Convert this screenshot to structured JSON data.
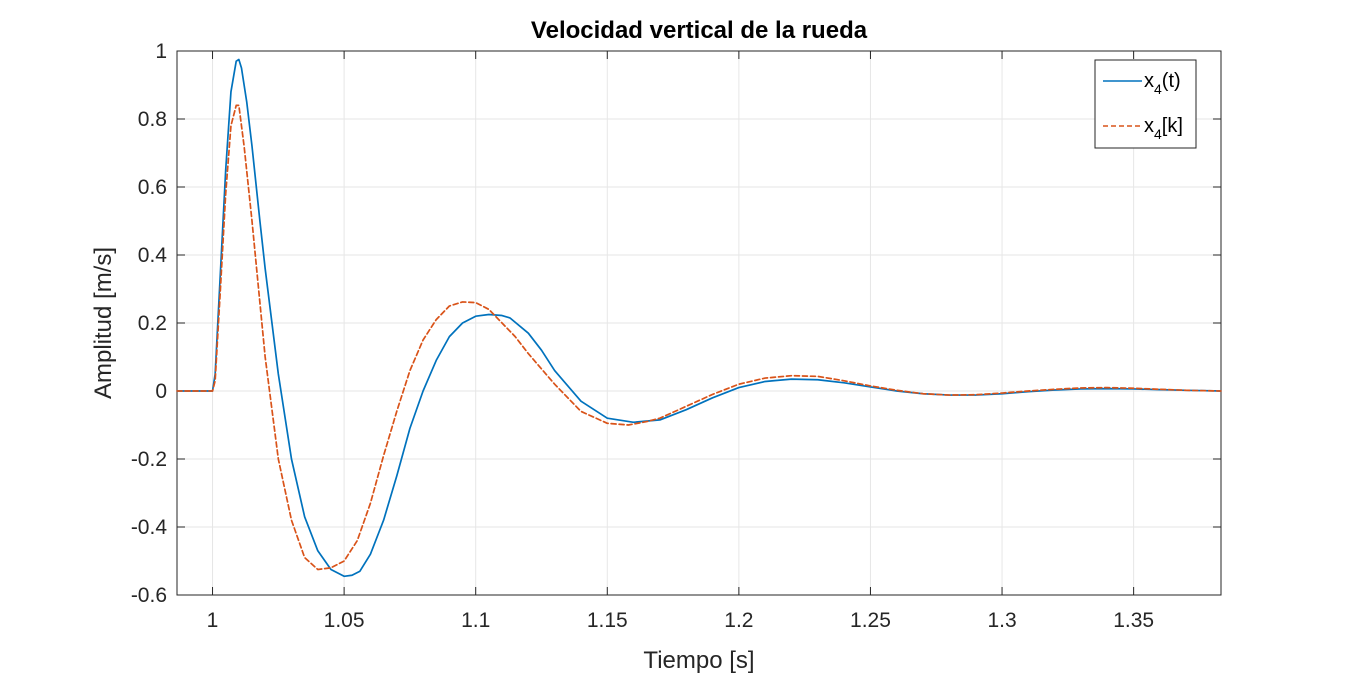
{
  "chart_data": {
    "type": "line",
    "title": "Velocidad vertical de la rueda",
    "xlabel": "Tiempo [s]",
    "ylabel": "Amplitud [m/s]",
    "xlim": [
      0.9865,
      1.3832
    ],
    "ylim": [
      -0.6,
      1
    ],
    "xticks": [
      1,
      1.05,
      1.1,
      1.15,
      1.2,
      1.25,
      1.3,
      1.35
    ],
    "xtick_labels": [
      "1",
      "1.05",
      "1.1",
      "1.15",
      "1.2",
      "1.25",
      "1.3",
      "1.35"
    ],
    "yticks": [
      -0.6,
      -0.4,
      -0.2,
      0,
      0.2,
      0.4,
      0.6,
      0.8,
      1
    ],
    "ytick_labels": [
      "-0.6",
      "-0.4",
      "-0.2",
      "0",
      "0.2",
      "0.4",
      "0.6",
      "0.8",
      "1"
    ],
    "grid": true,
    "legend_position": "top-right",
    "legend": {
      "items": [
        {
          "base": "x",
          "sub": "4",
          "suffix": "(t)"
        },
        {
          "base": "x",
          "sub": "4",
          "suffix": "[k]"
        }
      ]
    },
    "series": [
      {
        "name": "x4(t)",
        "color": "#0072BD",
        "style": "solid",
        "x": [
          0.9865,
          1.0,
          1.001,
          1.003,
          1.005,
          1.007,
          1.009,
          1.01,
          1.011,
          1.013,
          1.015,
          1.018,
          1.02,
          1.025,
          1.03,
          1.035,
          1.04,
          1.045,
          1.05,
          1.053,
          1.056,
          1.06,
          1.065,
          1.07,
          1.075,
          1.08,
          1.085,
          1.09,
          1.095,
          1.1,
          1.105,
          1.11,
          1.113,
          1.12,
          1.125,
          1.13,
          1.14,
          1.15,
          1.16,
          1.17,
          1.18,
          1.19,
          1.2,
          1.21,
          1.22,
          1.23,
          1.24,
          1.25,
          1.26,
          1.27,
          1.28,
          1.29,
          1.3,
          1.31,
          1.32,
          1.33,
          1.34,
          1.35,
          1.36,
          1.37,
          1.3832
        ],
        "y": [
          0,
          0,
          0.05,
          0.35,
          0.65,
          0.88,
          0.97,
          0.975,
          0.95,
          0.85,
          0.72,
          0.5,
          0.36,
          0.05,
          -0.2,
          -0.37,
          -0.47,
          -0.525,
          -0.545,
          -0.542,
          -0.53,
          -0.48,
          -0.38,
          -0.25,
          -0.11,
          0.0,
          0.09,
          0.16,
          0.2,
          0.22,
          0.225,
          0.222,
          0.215,
          0.17,
          0.12,
          0.06,
          -0.03,
          -0.08,
          -0.092,
          -0.085,
          -0.055,
          -0.02,
          0.01,
          0.028,
          0.035,
          0.033,
          0.024,
          0.012,
          0.0,
          -0.008,
          -0.012,
          -0.012,
          -0.008,
          -0.002,
          0.003,
          0.006,
          0.007,
          0.006,
          0.004,
          0.002,
          0.0
        ]
      },
      {
        "name": "x4[k]",
        "color": "#D95319",
        "style": "dashed",
        "x": [
          0.9865,
          1.0,
          1.001,
          1.003,
          1.005,
          1.007,
          1.009,
          1.01,
          1.012,
          1.015,
          1.02,
          1.025,
          1.03,
          1.035,
          1.04,
          1.045,
          1.05,
          1.055,
          1.06,
          1.065,
          1.07,
          1.075,
          1.08,
          1.085,
          1.09,
          1.095,
          1.1,
          1.105,
          1.11,
          1.115,
          1.12,
          1.13,
          1.14,
          1.15,
          1.158,
          1.165,
          1.17,
          1.18,
          1.19,
          1.2,
          1.21,
          1.22,
          1.23,
          1.24,
          1.25,
          1.26,
          1.27,
          1.28,
          1.29,
          1.3,
          1.31,
          1.32,
          1.33,
          1.34,
          1.35,
          1.36,
          1.37,
          1.3832
        ],
        "y": [
          0,
          0,
          0.03,
          0.3,
          0.58,
          0.78,
          0.84,
          0.84,
          0.72,
          0.5,
          0.1,
          -0.2,
          -0.38,
          -0.49,
          -0.525,
          -0.52,
          -0.5,
          -0.44,
          -0.33,
          -0.19,
          -0.06,
          0.06,
          0.15,
          0.21,
          0.25,
          0.262,
          0.26,
          0.24,
          0.2,
          0.16,
          0.11,
          0.02,
          -0.06,
          -0.095,
          -0.1,
          -0.09,
          -0.08,
          -0.045,
          -0.01,
          0.02,
          0.038,
          0.045,
          0.043,
          0.03,
          0.015,
          0.002,
          -0.008,
          -0.012,
          -0.011,
          -0.006,
          0.0,
          0.005,
          0.009,
          0.01,
          0.008,
          0.005,
          0.002,
          0.0
        ]
      }
    ]
  }
}
